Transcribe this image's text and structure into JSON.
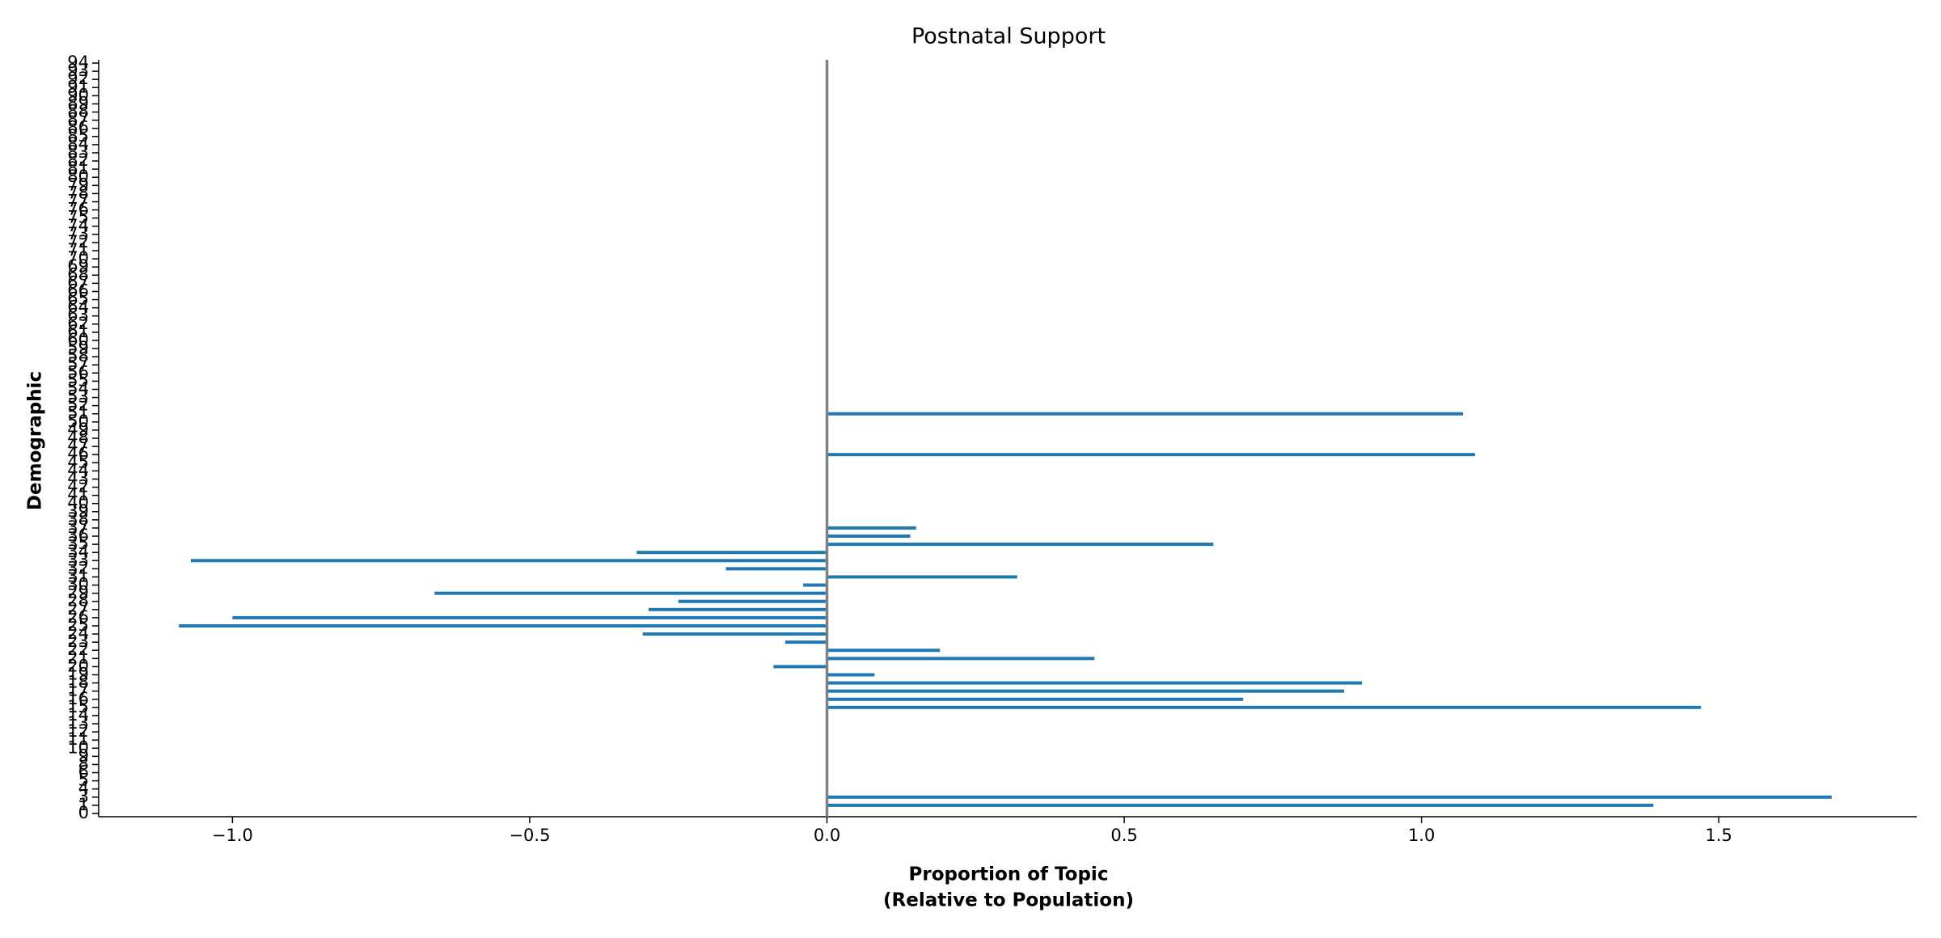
{
  "chart_data": {
    "type": "barh",
    "title": "Postnatal Support",
    "xlabel": [
      "Proportion of Topic",
      "(Relative to Population)"
    ],
    "ylabel": "Demographic",
    "categories": [
      "0",
      "1",
      "3",
      "4",
      "5",
      "6",
      "8",
      "9",
      "10",
      "11",
      "12",
      "13",
      "14",
      "15",
      "16",
      "17",
      "18",
      "19",
      "20",
      "21",
      "22",
      "23",
      "24",
      "25",
      "26",
      "27",
      "28",
      "29",
      "30",
      "31",
      "32",
      "33",
      "34",
      "35",
      "36",
      "37",
      "38",
      "39",
      "40",
      "41",
      "42",
      "43",
      "44",
      "45",
      "46",
      "47",
      "48",
      "49",
      "50",
      "51",
      "52",
      "53",
      "54",
      "55",
      "56",
      "57",
      "58",
      "59",
      "60",
      "61",
      "62",
      "63",
      "64",
      "65",
      "66",
      "67",
      "68",
      "69",
      "70",
      "71",
      "72",
      "73",
      "74",
      "75",
      "76",
      "77",
      "78",
      "79",
      "80",
      "81",
      "82",
      "83",
      "84",
      "85",
      "86",
      "87",
      "88",
      "89",
      "90",
      "91",
      "92",
      "93",
      "94"
    ],
    "values": [
      null,
      1.39,
      1.69,
      null,
      null,
      null,
      null,
      null,
      null,
      null,
      null,
      null,
      null,
      1.47,
      0.7,
      0.87,
      0.9,
      0.08,
      -0.09,
      0.45,
      0.19,
      -0.07,
      -0.31,
      -1.09,
      -1.0,
      -0.3,
      -0.25,
      -0.66,
      -0.04,
      0.32,
      -0.17,
      -1.07,
      -0.32,
      0.65,
      0.14,
      0.15,
      null,
      null,
      null,
      null,
      null,
      null,
      null,
      null,
      1.09,
      null,
      null,
      null,
      null,
      1.07,
      null,
      null,
      null,
      null,
      null,
      null,
      null,
      null,
      null,
      null,
      null,
      null,
      null,
      null,
      null,
      null,
      null,
      null,
      null,
      null,
      null,
      null,
      null,
      null,
      null,
      null,
      null,
      null,
      null,
      null,
      null,
      null,
      null,
      null,
      null,
      null,
      null,
      null,
      null,
      null,
      null,
      null,
      null
    ],
    "color": "#1f77b4",
    "xlim": [
      -1.225,
      1.833
    ],
    "xticks": [
      {
        "value": -1.0,
        "label": "−1.0"
      },
      {
        "value": -0.5,
        "label": "−0.5"
      },
      {
        "value": 0.0,
        "label": "0.0"
      },
      {
        "value": 0.5,
        "label": "0.5"
      },
      {
        "value": 1.0,
        "label": "1.0"
      },
      {
        "value": 1.5,
        "label": "1.5"
      }
    ],
    "zero_line_color": "#808080",
    "grid": false
  }
}
